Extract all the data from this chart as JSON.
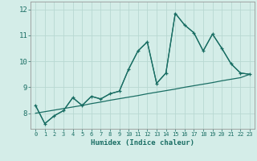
{
  "xlabel": "Humidex (Indice chaleur)",
  "bg_color": "#d4ede8",
  "grid_color": "#b8d8d2",
  "line_color": "#1a6e64",
  "x_values": [
    0,
    1,
    2,
    3,
    4,
    5,
    6,
    7,
    8,
    9,
    10,
    11,
    12,
    13,
    14,
    15,
    16,
    17,
    18,
    19,
    20,
    21,
    22,
    23
  ],
  "y_main": [
    8.3,
    7.6,
    7.9,
    8.1,
    8.6,
    8.3,
    8.65,
    8.55,
    8.75,
    8.85,
    9.7,
    10.4,
    10.75,
    9.15,
    9.55,
    11.85,
    11.4,
    11.1,
    10.4,
    11.05,
    10.5,
    9.9,
    9.55,
    9.5
  ],
  "y_smooth": [
    8.3,
    7.6,
    7.9,
    8.1,
    8.6,
    8.3,
    8.65,
    8.55,
    8.75,
    8.85,
    9.7,
    10.4,
    10.75,
    9.15,
    9.55,
    11.85,
    11.4,
    11.1,
    10.4,
    11.05,
    10.5,
    9.9,
    9.55,
    9.5
  ],
  "y_linear": [
    8.0,
    8.06,
    8.12,
    8.18,
    8.24,
    8.3,
    8.37,
    8.43,
    8.5,
    8.56,
    8.62,
    8.68,
    8.75,
    8.81,
    8.87,
    8.93,
    9.0,
    9.06,
    9.12,
    9.18,
    9.25,
    9.31,
    9.37,
    9.5
  ],
  "ylim": [
    7.4,
    12.3
  ],
  "xlim": [
    -0.5,
    23.5
  ],
  "yticks": [
    8,
    9,
    10,
    11,
    12
  ],
  "xticks": [
    0,
    1,
    2,
    3,
    4,
    5,
    6,
    7,
    8,
    9,
    10,
    11,
    12,
    13,
    14,
    15,
    16,
    17,
    18,
    19,
    20,
    21,
    22,
    23
  ]
}
